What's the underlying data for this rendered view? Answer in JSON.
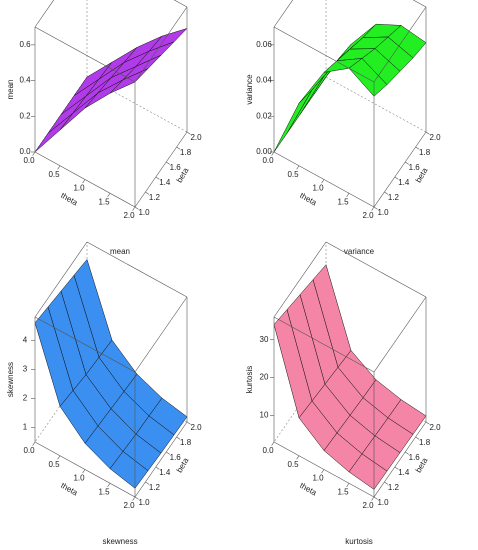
{
  "chart_data": [
    {
      "type": "surface",
      "caption": "mean",
      "xlabel": "theta",
      "ylabel": "beta",
      "zlabel": "mean",
      "color": "#b13be8",
      "x": [
        0,
        0.5,
        1,
        1.5,
        2
      ],
      "y": [
        1,
        1.25,
        1.5,
        1.75,
        2
      ],
      "z": [
        [
          0,
          0,
          0,
          0,
          0
        ],
        [
          0.2,
          0.19,
          0.18,
          0.17,
          0.16
        ],
        [
          0.4,
          0.38,
          0.36,
          0.34,
          0.32
        ],
        [
          0.56,
          0.53,
          0.5,
          0.48,
          0.46
        ],
        [
          0.7,
          0.67,
          0.64,
          0.61,
          0.58
        ]
      ],
      "xlim": [
        0,
        2
      ],
      "ylim": [
        1,
        2
      ],
      "zlim": [
        0,
        0.7
      ],
      "xticks": [
        {
          "value": 0,
          "label": "0.0"
        },
        {
          "value": 0.5,
          "label": "0.5"
        },
        {
          "value": 1,
          "label": "1.0"
        },
        {
          "value": 1.5,
          "label": "1.5"
        },
        {
          "value": 2,
          "label": "2.0"
        }
      ],
      "yticks": [
        {
          "value": 1,
          "label": "1.0"
        },
        {
          "value": 1.2,
          "label": "1.2"
        },
        {
          "value": 1.4,
          "label": "1.4"
        },
        {
          "value": 1.6,
          "label": "1.6"
        },
        {
          "value": 1.8,
          "label": "1.8"
        },
        {
          "value": 2,
          "label": "2.0"
        }
      ],
      "zticks": [
        {
          "value": 0,
          "label": "0.0"
        },
        {
          "value": 0.2,
          "label": "0.2"
        },
        {
          "value": 0.4,
          "label": "0.4"
        },
        {
          "value": 0.6,
          "label": "0.6"
        }
      ]
    },
    {
      "type": "surface",
      "caption": "variance",
      "xlabel": "theta",
      "ylabel": "beta",
      "zlabel": "variance",
      "color": "#22ee22",
      "x": [
        0,
        0.5,
        1,
        1.5,
        2
      ],
      "y": [
        1,
        1.25,
        1.5,
        1.75,
        2
      ],
      "z": [
        [
          0,
          0,
          0,
          0,
          0
        ],
        [
          0.035,
          0.032,
          0.03,
          0.028,
          0.026
        ],
        [
          0.06,
          0.056,
          0.052,
          0.048,
          0.045
        ],
        [
          0.07,
          0.065,
          0.06,
          0.056,
          0.052
        ],
        [
          0.062,
          0.058,
          0.055,
          0.052,
          0.05
        ]
      ],
      "xlim": [
        0,
        2
      ],
      "ylim": [
        1,
        2
      ],
      "zlim": [
        0,
        0.07
      ],
      "xticks": [
        {
          "value": 0,
          "label": "0.0"
        },
        {
          "value": 0.5,
          "label": "0.5"
        },
        {
          "value": 1,
          "label": "1.0"
        },
        {
          "value": 1.5,
          "label": "1.5"
        },
        {
          "value": 2,
          "label": "2.0"
        }
      ],
      "yticks": [
        {
          "value": 1,
          "label": "1.0"
        },
        {
          "value": 1.2,
          "label": "1.2"
        },
        {
          "value": 1.4,
          "label": "1.4"
        },
        {
          "value": 1.6,
          "label": "1.6"
        },
        {
          "value": 1.8,
          "label": "1.8"
        },
        {
          "value": 2,
          "label": "2.0"
        }
      ],
      "zticks": [
        {
          "value": 0,
          "label": "0.00"
        },
        {
          "value": 0.02,
          "label": "0.02"
        },
        {
          "value": 0.04,
          "label": "0.04"
        },
        {
          "value": 0.06,
          "label": "0.06"
        }
      ]
    },
    {
      "type": "surface",
      "caption": "skewness",
      "xlabel": "theta",
      "ylabel": "beta",
      "zlabel": "skewness",
      "color": "#3a8ff0",
      "x": [
        0,
        0.5,
        1,
        1.5,
        2
      ],
      "y": [
        1,
        1.25,
        1.5,
        1.75,
        2
      ],
      "z": [
        [
          4.6,
          4.5,
          4.4,
          4.3,
          4.2
        ],
        [
          2.2,
          2.1,
          2.0,
          1.95,
          1.9
        ],
        [
          1.4,
          1.35,
          1.3,
          1.25,
          1.2
        ],
        [
          1.0,
          0.95,
          0.9,
          0.88,
          0.85
        ],
        [
          0.8,
          0.76,
          0.72,
          0.7,
          0.68
        ]
      ],
      "xlim": [
        0,
        2
      ],
      "ylim": [
        1,
        2
      ],
      "zlim": [
        0.5,
        4.8
      ],
      "xticks": [
        {
          "value": 0,
          "label": "0.0"
        },
        {
          "value": 0.5,
          "label": "0.5"
        },
        {
          "value": 1,
          "label": "1.0"
        },
        {
          "value": 1.5,
          "label": "1.5"
        },
        {
          "value": 2,
          "label": "2.0"
        }
      ],
      "yticks": [
        {
          "value": 1,
          "label": "1.0"
        },
        {
          "value": 1.2,
          "label": "1.2"
        },
        {
          "value": 1.4,
          "label": "1.4"
        },
        {
          "value": 1.6,
          "label": "1.6"
        },
        {
          "value": 1.8,
          "label": "1.8"
        },
        {
          "value": 2,
          "label": "2.0"
        }
      ],
      "zticks": [
        1,
        2,
        3,
        4
      ]
    },
    {
      "type": "surface",
      "caption": "kurtosis",
      "xlabel": "theta",
      "ylabel": "beta",
      "zlabel": "kurtosis",
      "color": "#f585a6",
      "x": [
        0,
        0.5,
        1,
        1.5,
        2
      ],
      "y": [
        1,
        1.25,
        1.5,
        1.75,
        2
      ],
      "z": [
        [
          34,
          33,
          32,
          31,
          30
        ],
        [
          13,
          12.5,
          12,
          11.5,
          11
        ],
        [
          8,
          7.7,
          7.4,
          7.1,
          6.9
        ],
        [
          6,
          5.8,
          5.6,
          5.4,
          5.3
        ],
        [
          5,
          4.9,
          4.8,
          4.7,
          4.6
        ]
      ],
      "xlim": [
        0,
        2
      ],
      "ylim": [
        1,
        2
      ],
      "zlim": [
        3,
        36
      ],
      "xticks": [
        {
          "value": 0,
          "label": "0.0"
        },
        {
          "value": 0.5,
          "label": "0.5"
        },
        {
          "value": 1,
          "label": "1.0"
        },
        {
          "value": 1.5,
          "label": "1.5"
        },
        {
          "value": 2,
          "label": "2.0"
        }
      ],
      "yticks": [
        {
          "value": 1,
          "label": "1.0"
        },
        {
          "value": 1.2,
          "label": "1.2"
        },
        {
          "value": 1.4,
          "label": "1.4"
        },
        {
          "value": 1.6,
          "label": "1.6"
        },
        {
          "value": 1.8,
          "label": "1.8"
        },
        {
          "value": 2,
          "label": "2.0"
        }
      ],
      "zticks": [
        10,
        20,
        30
      ]
    }
  ]
}
